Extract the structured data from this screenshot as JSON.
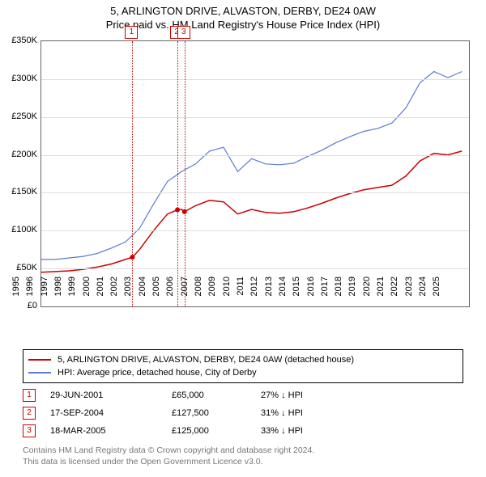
{
  "title_line1": "5, ARLINGTON DRIVE, ALVASTON, DERBY, DE24 0AW",
  "title_line2": "Price paid vs. HM Land Registry's House Price Index (HPI)",
  "chart": {
    "type": "line",
    "background_color": "#ffffff",
    "grid_color": "#dddddd",
    "border_color": "#666666",
    "x_years": [
      1995,
      1996,
      1997,
      1998,
      1999,
      2000,
      2001,
      2002,
      2003,
      2004,
      2005,
      2006,
      2007,
      2008,
      2009,
      2010,
      2011,
      2012,
      2013,
      2014,
      2015,
      2016,
      2017,
      2018,
      2019,
      2020,
      2021,
      2022,
      2023,
      2024,
      2025
    ],
    "xlim": [
      1995,
      2025.5
    ],
    "ylim": [
      0,
      350000
    ],
    "ytick_step": 50000,
    "ytick_labels": [
      "£0",
      "£50K",
      "£100K",
      "£150K",
      "£200K",
      "£250K",
      "£300K",
      "£350K"
    ],
    "series": [
      {
        "name": "address_series",
        "label": "5, ARLINGTON DRIVE, ALVASTON, DERBY, DE24 0AW (detached house)",
        "color": "#cc0000",
        "line_width": 1.5,
        "points": [
          [
            1995,
            45000
          ],
          [
            1996,
            46000
          ],
          [
            1997,
            47000
          ],
          [
            1998,
            49000
          ],
          [
            1999,
            52000
          ],
          [
            2000,
            56000
          ],
          [
            2001,
            62000
          ],
          [
            2001.5,
            65000
          ],
          [
            2002,
            75000
          ],
          [
            2003,
            100000
          ],
          [
            2004,
            122000
          ],
          [
            2004.71,
            127500
          ],
          [
            2005,
            128000
          ],
          [
            2005.21,
            125000
          ],
          [
            2006,
            133000
          ],
          [
            2007,
            140000
          ],
          [
            2008,
            138000
          ],
          [
            2009,
            122000
          ],
          [
            2010,
            128000
          ],
          [
            2011,
            124000
          ],
          [
            2012,
            123000
          ],
          [
            2013,
            125000
          ],
          [
            2014,
            130000
          ],
          [
            2015,
            136000
          ],
          [
            2016,
            143000
          ],
          [
            2017,
            149000
          ],
          [
            2018,
            154000
          ],
          [
            2019,
            157000
          ],
          [
            2020,
            160000
          ],
          [
            2021,
            172000
          ],
          [
            2022,
            192000
          ],
          [
            2023,
            202000
          ],
          [
            2024,
            200000
          ],
          [
            2025,
            205000
          ]
        ]
      },
      {
        "name": "hpi_series",
        "label": "HPI: Average price, detached house, City of Derby",
        "color": "#5b7bd5",
        "line_width": 1.2,
        "points": [
          [
            1995,
            62000
          ],
          [
            1996,
            62000
          ],
          [
            1997,
            64000
          ],
          [
            1998,
            66000
          ],
          [
            1999,
            70000
          ],
          [
            2000,
            77000
          ],
          [
            2001,
            85000
          ],
          [
            2002,
            103000
          ],
          [
            2003,
            135000
          ],
          [
            2004,
            165000
          ],
          [
            2005,
            178000
          ],
          [
            2006,
            188000
          ],
          [
            2007,
            205000
          ],
          [
            2008,
            210000
          ],
          [
            2009,
            178000
          ],
          [
            2010,
            195000
          ],
          [
            2011,
            188000
          ],
          [
            2012,
            187000
          ],
          [
            2013,
            189000
          ],
          [
            2014,
            198000
          ],
          [
            2015,
            206000
          ],
          [
            2016,
            216000
          ],
          [
            2017,
            224000
          ],
          [
            2018,
            231000
          ],
          [
            2019,
            235000
          ],
          [
            2020,
            242000
          ],
          [
            2021,
            262000
          ],
          [
            2022,
            295000
          ],
          [
            2023,
            310000
          ],
          [
            2024,
            302000
          ],
          [
            2025,
            310000
          ]
        ]
      }
    ],
    "sale_markers": [
      {
        "num": "1",
        "year": 2001.49
      },
      {
        "num": "2",
        "year": 2004.71
      },
      {
        "num": "3",
        "year": 2005.21
      }
    ],
    "sale_dots": [
      {
        "year": 2001.49,
        "value": 65000
      },
      {
        "year": 2004.71,
        "value": 127500
      },
      {
        "year": 2005.21,
        "value": 125000
      }
    ]
  },
  "legend": {
    "items": [
      {
        "color": "#cc0000",
        "label": "5, ARLINGTON DRIVE, ALVASTON, DERBY, DE24 0AW (detached house)"
      },
      {
        "color": "#5b7bd5",
        "label": "HPI: Average price, detached house, City of Derby"
      }
    ]
  },
  "sales": [
    {
      "num": "1",
      "date": "29-JUN-2001",
      "price": "£65,000",
      "pct": "27% ↓ HPI"
    },
    {
      "num": "2",
      "date": "17-SEP-2004",
      "price": "£127,500",
      "pct": "31% ↓ HPI"
    },
    {
      "num": "3",
      "date": "18-MAR-2005",
      "price": "£125,000",
      "pct": "33% ↓ HPI"
    }
  ],
  "footer_line1": "Contains HM Land Registry data © Crown copyright and database right 2024.",
  "footer_line2": "This data is licensed under the Open Government Licence v3.0."
}
